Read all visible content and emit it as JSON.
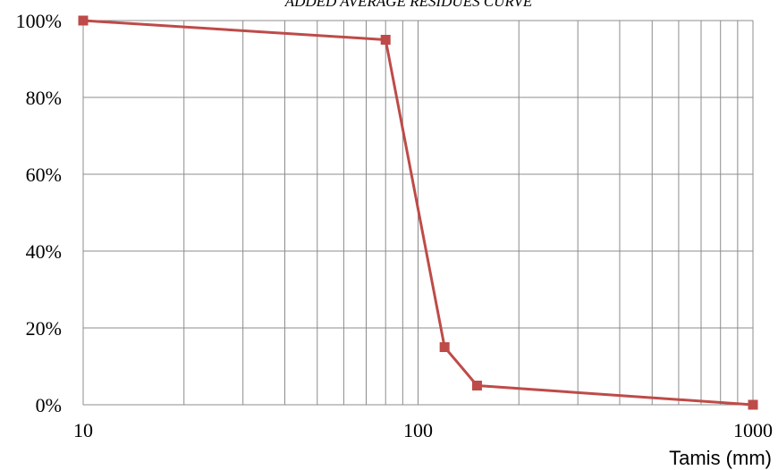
{
  "chart_data": {
    "type": "line",
    "title": "ADDED AVERAGE RESIDUES CURVE",
    "xlabel": "Tamis (mm)",
    "ylabel": "",
    "x_scale": "log",
    "xlim": [
      10,
      1000
    ],
    "ylim": [
      0,
      1
    ],
    "x_ticks": [
      10,
      100,
      1000
    ],
    "x_tick_labels": [
      "10",
      "100",
      "1000"
    ],
    "y_ticks": [
      0,
      0.2,
      0.4,
      0.6,
      0.8,
      1.0
    ],
    "y_tick_labels": [
      "0%",
      "20%",
      "40%",
      "60%",
      "80%",
      "100%"
    ],
    "grid": true,
    "series": [
      {
        "color": "#be4b48",
        "marker": "square",
        "x": [
          10,
          80,
          120,
          150,
          1000
        ],
        "y": [
          1.0,
          0.95,
          0.15,
          0.05,
          0.0
        ]
      }
    ]
  }
}
